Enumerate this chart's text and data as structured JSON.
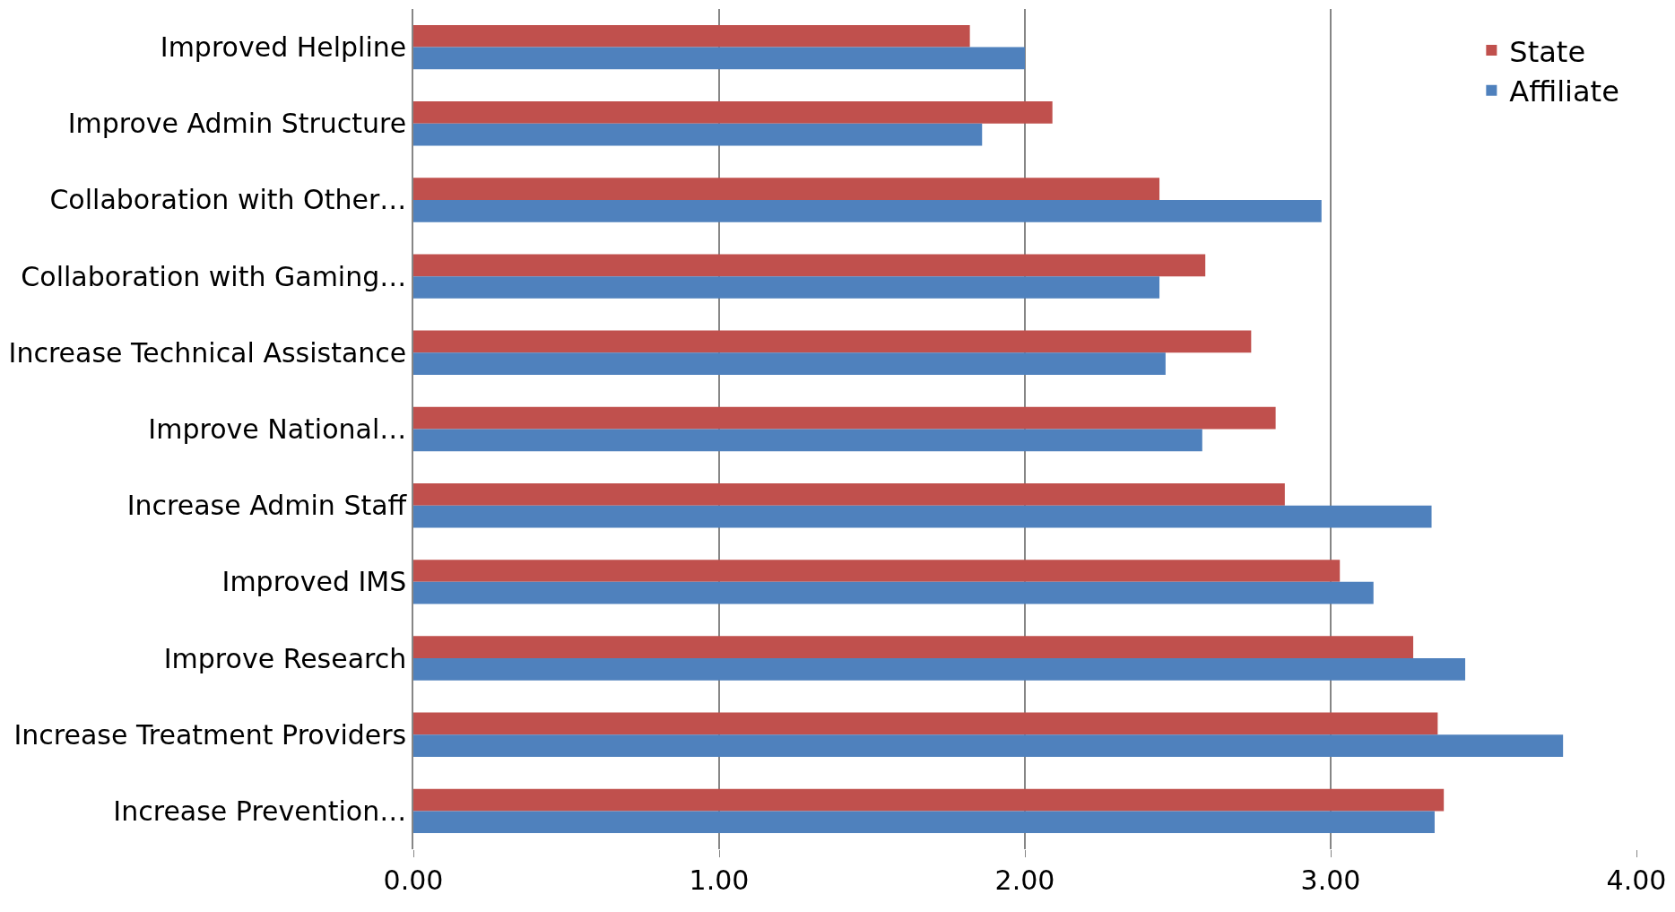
{
  "chart_data": {
    "type": "bar",
    "orientation": "horizontal",
    "categories": [
      "Improved Helpline",
      "Improve Admin Structure",
      "Collaboration with Other…",
      "Collaboration with Gaming…",
      "Increase Technical Assistance",
      "Improve National…",
      "Increase Admin Staff",
      "Improved IMS",
      "Improve Research",
      "Increase Treatment Providers",
      "Increase Prevention…"
    ],
    "series": [
      {
        "name": "State",
        "color": "#c0504d",
        "values": [
          1.82,
          2.09,
          2.44,
          2.59,
          2.74,
          2.82,
          2.85,
          3.03,
          3.27,
          3.35,
          3.37
        ]
      },
      {
        "name": "Affiliate",
        "color": "#4f81bd",
        "values": [
          2.0,
          1.86,
          2.97,
          2.44,
          2.46,
          2.58,
          3.33,
          3.14,
          3.44,
          3.76,
          3.34
        ]
      }
    ],
    "xlim": [
      0,
      4
    ],
    "xticks": [
      {
        "value": 0,
        "label": "0.00"
      },
      {
        "value": 1,
        "label": "1.00"
      },
      {
        "value": 2,
        "label": "2.00"
      },
      {
        "value": 3,
        "label": "3.00"
      },
      {
        "value": 4,
        "label": "4.00"
      }
    ],
    "grid": "x",
    "legend": "top right"
  }
}
